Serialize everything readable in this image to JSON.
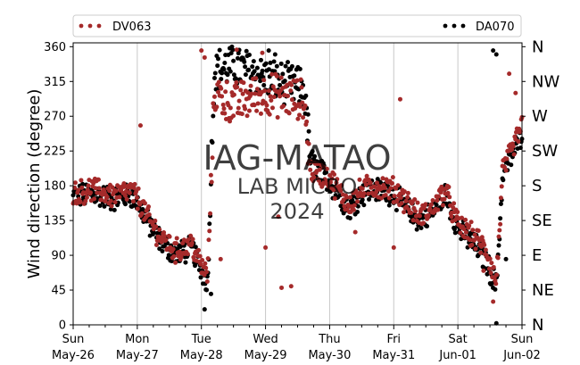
{
  "chart_data": {
    "type": "scatter",
    "ylabel": "Wind direction (degree)",
    "ylim": [
      0,
      365
    ],
    "yticks": [
      0,
      45,
      90,
      135,
      180,
      225,
      270,
      315,
      360
    ],
    "x_range": [
      "2024-05-26",
      "2024-06-02"
    ],
    "xticks": [
      {
        "weekday": "Sun",
        "date": "May-26",
        "day": 0
      },
      {
        "weekday": "Mon",
        "date": "May-27",
        "day": 1
      },
      {
        "weekday": "Tue",
        "date": "May-28",
        "day": 2
      },
      {
        "weekday": "Wed",
        "date": "May-29",
        "day": 3
      },
      {
        "weekday": "Thu",
        "date": "May-30",
        "day": 4
      },
      {
        "weekday": "Fri",
        "date": "May-31",
        "day": 5
      },
      {
        "weekday": "Sat",
        "date": "Jun-01",
        "day": 6
      },
      {
        "weekday": "Sun",
        "date": "Jun-02",
        "day": 7
      }
    ],
    "right_axis_labels": [
      {
        "label": "N",
        "deg": 0
      },
      {
        "label": "NE",
        "deg": 45
      },
      {
        "label": "E",
        "deg": 90
      },
      {
        "label": "SE",
        "deg": 135
      },
      {
        "label": "S",
        "deg": 180
      },
      {
        "label": "SW",
        "deg": 225
      },
      {
        "label": "W",
        "deg": 270
      },
      {
        "label": "NW",
        "deg": 315
      },
      {
        "label": "N",
        "deg": 360
      }
    ],
    "grid": "vertical lines at day boundaries",
    "legend_placement": "top (above plot)",
    "series": [
      {
        "name": "DV063",
        "color": "#a52a2a",
        "trend": [
          [
            0,
            170
          ],
          [
            0.3,
            175
          ],
          [
            0.6,
            168
          ],
          [
            0.9,
            172
          ],
          [
            1.0,
            165
          ],
          [
            1.15,
            140
          ],
          [
            1.35,
            115
          ],
          [
            1.6,
            95
          ],
          [
            1.85,
            105
          ],
          [
            2.0,
            75
          ],
          [
            2.1,
            65
          ],
          [
            2.2,
            300
          ],
          [
            2.5,
            285
          ],
          [
            2.8,
            295
          ],
          [
            3.0,
            300
          ],
          [
            3.3,
            295
          ],
          [
            3.6,
            290
          ],
          [
            3.7,
            200
          ],
          [
            4.0,
            190
          ],
          [
            4.3,
            155
          ],
          [
            4.5,
            175
          ],
          [
            4.7,
            180
          ],
          [
            5.0,
            175
          ],
          [
            5.2,
            160
          ],
          [
            5.4,
            140
          ],
          [
            5.6,
            150
          ],
          [
            5.8,
            175
          ],
          [
            6.0,
            130
          ],
          [
            6.3,
            110
          ],
          [
            6.45,
            95
          ],
          [
            6.6,
            55
          ],
          [
            6.7,
            200
          ],
          [
            6.85,
            225
          ],
          [
            7.0,
            260
          ]
        ],
        "outliers": [
          [
            1.05,
            258
          ],
          [
            2.0,
            355
          ],
          [
            2.05,
            346
          ],
          [
            2.55,
            356
          ],
          [
            2.95,
            352
          ],
          [
            3.25,
            48
          ],
          [
            3.4,
            50
          ],
          [
            2.3,
            85
          ],
          [
            3.0,
            100
          ],
          [
            3.2,
            140
          ],
          [
            4.4,
            120
          ],
          [
            5.0,
            100
          ],
          [
            5.1,
            292
          ],
          [
            5.9,
            140
          ],
          [
            6.4,
            70
          ],
          [
            6.55,
            30
          ],
          [
            6.8,
            325
          ],
          [
            6.9,
            300
          ]
        ]
      },
      {
        "name": "DA070",
        "color": "#000000",
        "trend": [
          [
            0,
            165
          ],
          [
            0.3,
            170
          ],
          [
            0.6,
            163
          ],
          [
            0.9,
            168
          ],
          [
            1.0,
            160
          ],
          [
            1.15,
            135
          ],
          [
            1.35,
            110
          ],
          [
            1.6,
            90
          ],
          [
            1.85,
            100
          ],
          [
            2.0,
            70
          ],
          [
            2.1,
            55
          ],
          [
            2.2,
            330
          ],
          [
            2.5,
            335
          ],
          [
            2.8,
            328
          ],
          [
            3.0,
            320
          ],
          [
            3.3,
            312
          ],
          [
            3.6,
            305
          ],
          [
            3.7,
            215
          ],
          [
            4.0,
            185
          ],
          [
            4.3,
            150
          ],
          [
            4.5,
            170
          ],
          [
            4.7,
            175
          ],
          [
            5.0,
            170
          ],
          [
            5.2,
            150
          ],
          [
            5.4,
            135
          ],
          [
            5.6,
            145
          ],
          [
            5.8,
            170
          ],
          [
            6.0,
            125
          ],
          [
            6.3,
            100
          ],
          [
            6.45,
            80
          ],
          [
            6.6,
            50
          ],
          [
            6.7,
            195
          ],
          [
            6.85,
            220
          ],
          [
            7.0,
            250
          ]
        ],
        "outliers": [
          [
            2.05,
            20
          ],
          [
            2.15,
            40
          ],
          [
            6.55,
            355
          ],
          [
            6.6,
            350
          ],
          [
            6.6,
            2
          ],
          [
            6.75,
            85
          ],
          [
            3.05,
            355
          ],
          [
            3.15,
            350
          ]
        ]
      }
    ]
  },
  "legend": {
    "items": [
      {
        "name": "DV063",
        "color": "#a52a2a"
      },
      {
        "name": "DA070",
        "color": "#000000"
      }
    ]
  },
  "watermark": {
    "line1": "IAG-MATAO",
    "line2": "LAB MICRO",
    "line3": "2024"
  }
}
